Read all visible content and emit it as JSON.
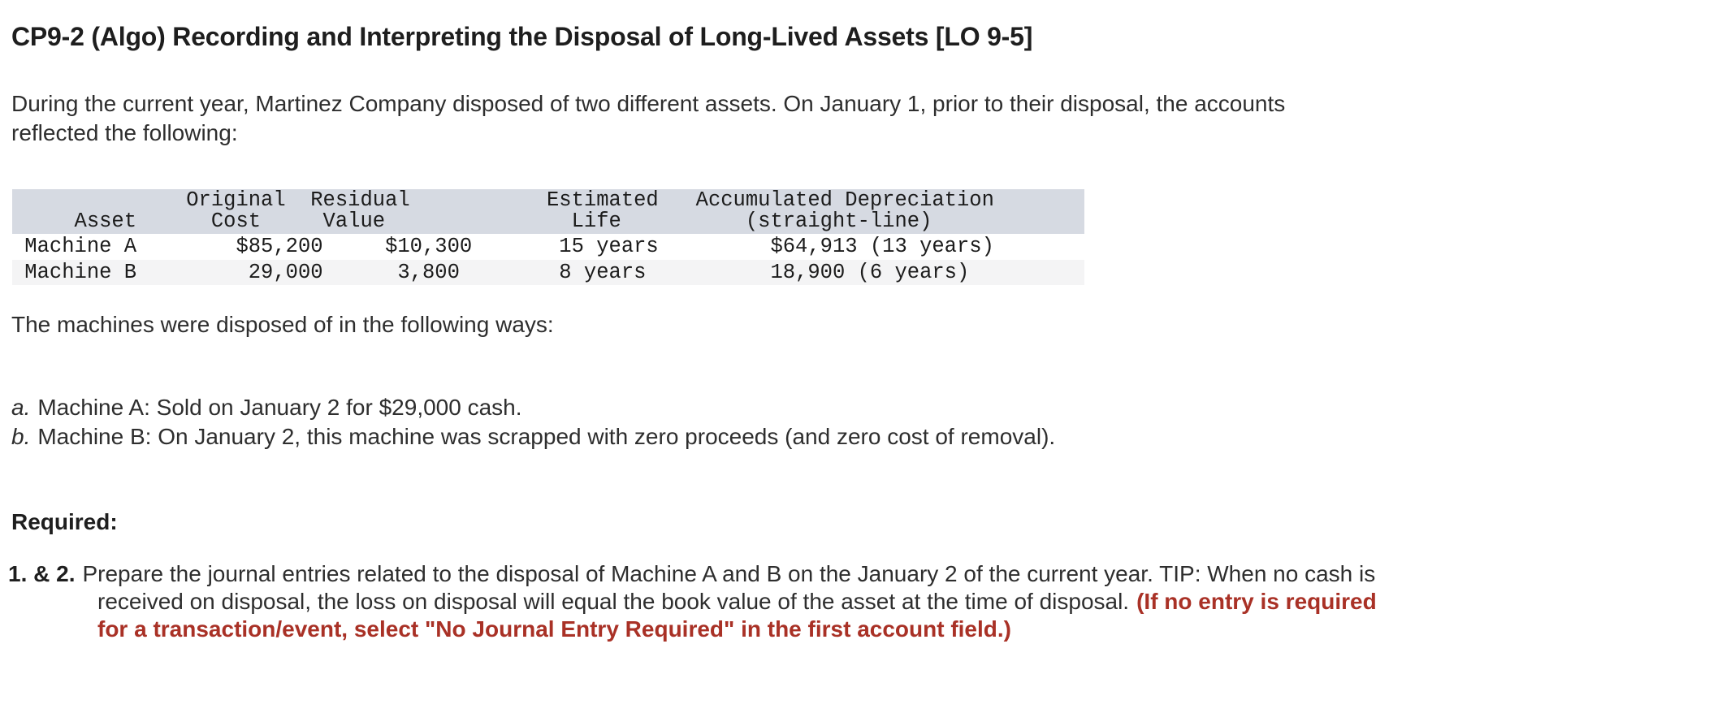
{
  "colors": {
    "accent_red": "#a93126",
    "header_bg": "#d6dae2",
    "row_alt_bg": "#f4f4f5",
    "body_text": "#2e2e2e",
    "title_text": "#1e1e1e"
  },
  "title": "CP9-2 (Algo) Recording and Interpreting the Disposal of Long-Lived Assets [LO 9-5]",
  "intro": {
    "line1": "During the current year, Martinez Company disposed of two different assets. On January 1, prior to their disposal, the accounts",
    "line2": "reflected the following:"
  },
  "asset_table": {
    "columns": [
      "Asset",
      "Original Cost",
      "Residual Value",
      "Estimated Life",
      "Accumulated Depreciation (straight-line)"
    ],
    "rows": [
      [
        "Machine A",
        "$85,200",
        "$10,300",
        "15 years",
        "$64,913 (13 years)"
      ],
      [
        "Machine B",
        "29,000",
        "3,800",
        "8 years",
        "18,900 (6 years)"
      ]
    ],
    "pre": {
      "header_line1": "              Original  Residual           Estimated   Accumulated Depreciation",
      "header_line2": "     Asset      Cost     Value               Life          (straight-line)",
      "row_a": " Machine A        $85,200     $10,300       15 years         $64,913 (13 years)",
      "row_b": " Machine B         29,000      3,800        8 years          18,900 (6 years)"
    }
  },
  "disposal": {
    "intro": "The machines were disposed of in the following ways:",
    "items": [
      {
        "letter": "a.",
        "text": "Machine A: Sold on January 2 for $29,000 cash."
      },
      {
        "letter": "b.",
        "text": "Machine B: On January 2, this machine was scrapped with zero proceeds (and zero cost of removal)."
      }
    ]
  },
  "required": {
    "label": "Required:",
    "item_prefix": "1. & 2.",
    "line1": "Prepare the journal entries related to the disposal of Machine A and B on the January 2 of the current year. TIP: When no cash is",
    "line2": "received on disposal, the loss on disposal will equal the book value of the asset at the time of disposal.",
    "line2_red": "(If no entry is required",
    "line3_red": "for a transaction/event, select \"No Journal Entry Required\" in the first account field.)"
  }
}
